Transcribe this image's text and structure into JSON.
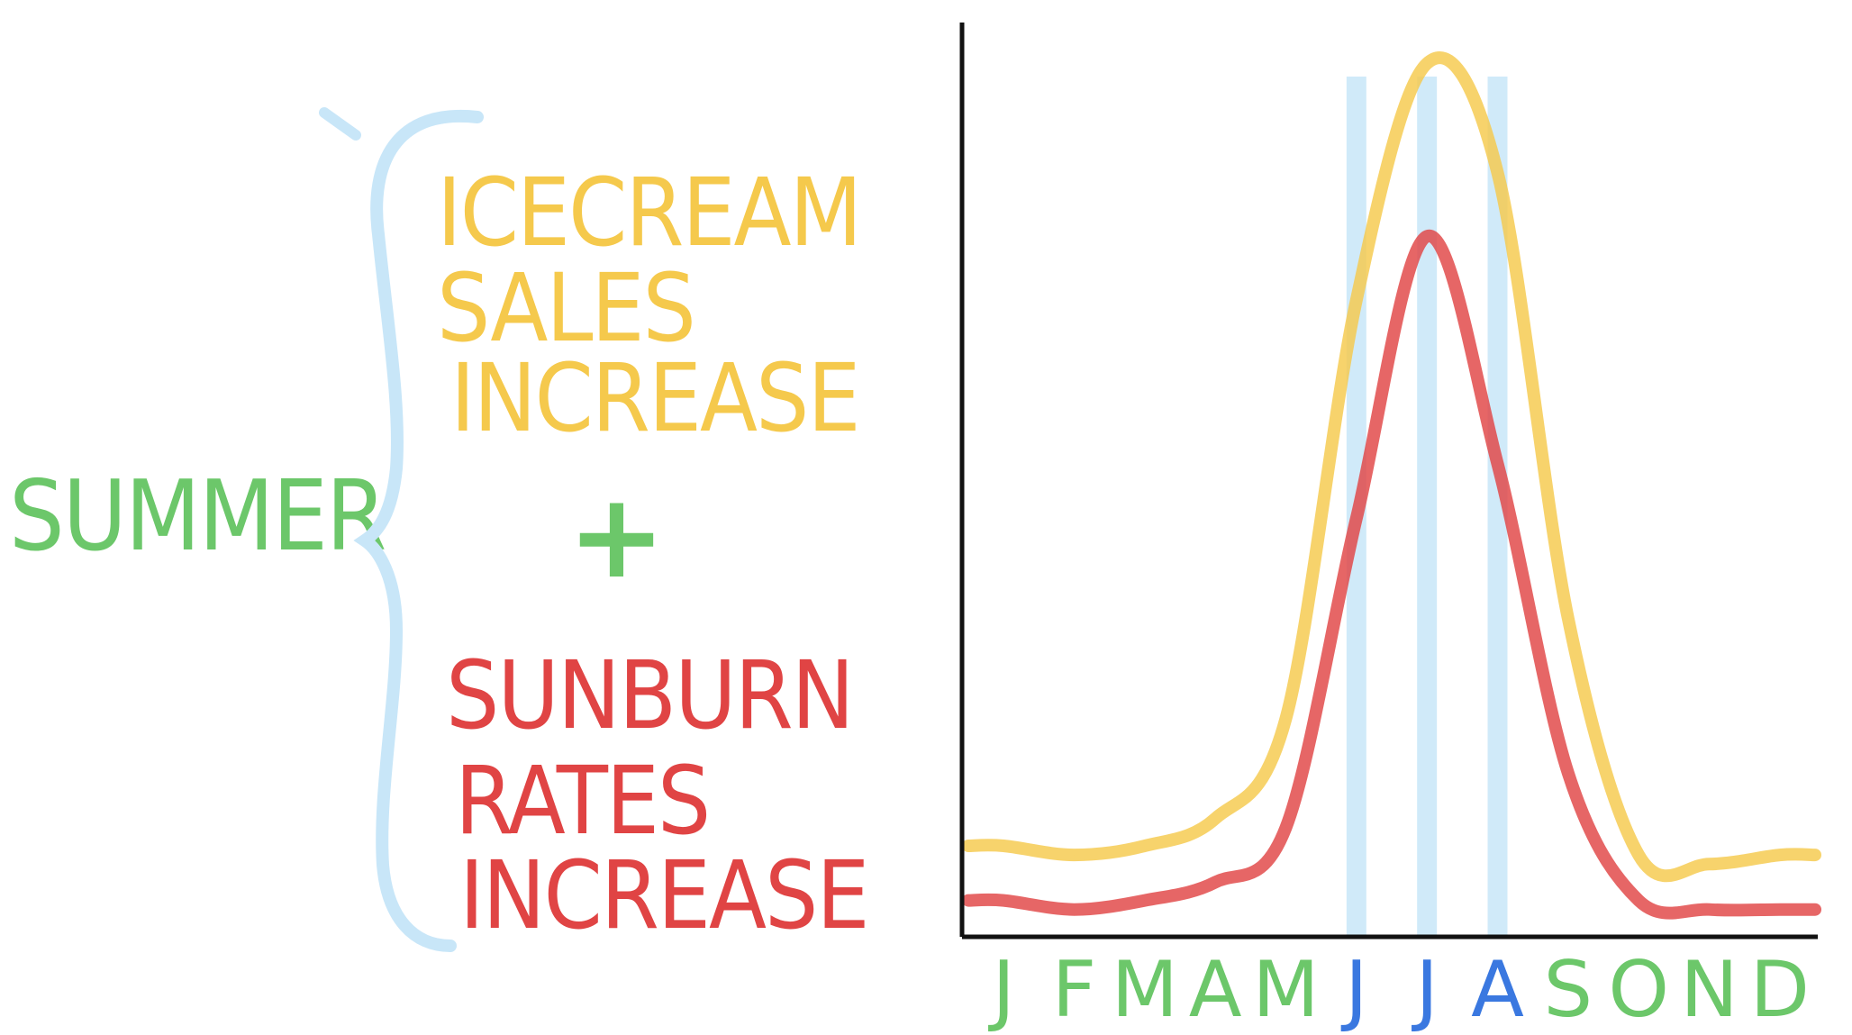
{
  "colors": {
    "summer": "#6cc76a",
    "icecream": "#f5c94c",
    "sunburn": "#e04444",
    "plus": "#6cc76a",
    "brace": "#c8e6f8",
    "summer_months": "#3a78e0",
    "other_months": "#6cc76a",
    "axis": "#111111"
  },
  "left_panel": {
    "summer_label": "SUMMER",
    "icecream_lines": [
      "ICECREAM",
      "SALES",
      "INCREASE"
    ],
    "plus_sign": "+",
    "sunburn_lines": [
      "SUNBURN",
      "RATES",
      "INCREASE"
    ]
  },
  "chart_data": {
    "type": "line",
    "title": "",
    "xlabel": "",
    "ylabel": "",
    "categories": [
      "J",
      "F",
      "M",
      "A",
      "M",
      "J",
      "J",
      "A",
      "S",
      "O",
      "N",
      "D"
    ],
    "highlighted_categories": [
      5,
      6,
      7
    ],
    "ylim": [
      0,
      100
    ],
    "grid": false,
    "legend": "none",
    "series": [
      {
        "color": "#f5c94c",
        "values": [
          10,
          9,
          10,
          13,
          24,
          70,
          96,
          84,
          35,
          9,
          8,
          9
        ]
      },
      {
        "color": "#e04444",
        "values": [
          4,
          3,
          4,
          6,
          12,
          46,
          77,
          52,
          18,
          4,
          3,
          3
        ]
      }
    ]
  }
}
